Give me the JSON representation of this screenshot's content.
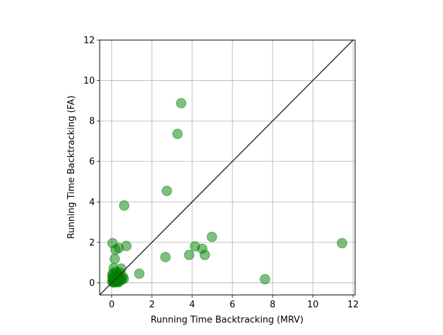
{
  "chart_data": {
    "type": "scatter",
    "title": "",
    "xlabel": "Running Time Backtracking (MRV)",
    "ylabel": "Running Time Backtracking (FA)",
    "xlim": [
      -0.6,
      12.1
    ],
    "ylim": [
      -0.6,
      12.0
    ],
    "x_ticks": [
      0,
      2,
      4,
      6,
      8,
      10,
      12
    ],
    "y_ticks": [
      0,
      2,
      4,
      6,
      8,
      10,
      12
    ],
    "x_tick_labels": [
      "0",
      "2",
      "4",
      "6",
      "8",
      "10",
      "12"
    ],
    "y_tick_labels": [
      "0",
      "2",
      "4",
      "6",
      "8",
      "10",
      "12"
    ],
    "grid": true,
    "reference_line": "y = x",
    "marker_color": "#008000",
    "marker_alpha": 0.5,
    "line_color": "#333333",
    "series": [
      {
        "x": [
          3.45,
          3.27,
          2.74,
          0.62,
          4.98,
          11.45,
          0.04,
          0.73,
          0.35,
          0.19,
          0.15,
          4.14,
          4.5,
          3.85,
          4.63,
          2.67,
          1.37,
          7.62,
          0.47,
          0.1,
          0.2,
          0.3,
          0.4,
          0.55,
          0.15,
          0.25,
          0.35,
          0.05,
          0.1,
          0.2,
          0.3,
          0.45,
          0.6,
          0.08,
          0.18,
          0.28,
          0.38,
          0.5,
          0.05,
          0.12,
          0.22,
          0.32,
          0.02,
          0.15,
          0.25,
          0.05,
          0.1,
          0.03
        ],
        "y": [
          8.88,
          7.36,
          4.54,
          3.82,
          2.27,
          1.96,
          1.96,
          1.82,
          1.72,
          1.64,
          1.18,
          1.8,
          1.68,
          1.38,
          1.38,
          1.27,
          0.45,
          0.18,
          0.7,
          0.72,
          0.55,
          0.45,
          0.5,
          0.3,
          0.38,
          0.35,
          0.3,
          0.45,
          0.25,
          0.22,
          0.2,
          0.18,
          0.2,
          0.15,
          0.12,
          0.1,
          0.08,
          0.15,
          0.1,
          0.05,
          0.04,
          0.02,
          0.35,
          0.3,
          0.08,
          0.2,
          0.01,
          0.05
        ]
      }
    ]
  }
}
